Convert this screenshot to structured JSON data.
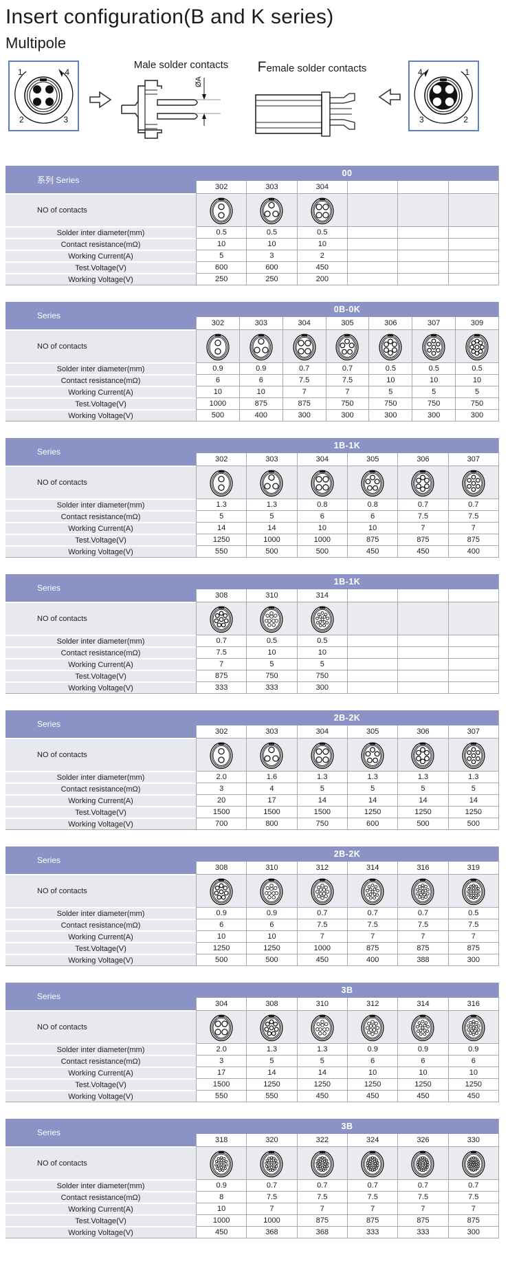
{
  "page": {
    "title": "Insert configuration(B and K series)",
    "subtitle": "Multipole",
    "male_contacts_label": "Male solder contacts",
    "female_contacts_label": "Female solder contacts",
    "dim_label": "ØA"
  },
  "face_diagrams": {
    "male": {
      "pins": [
        "1",
        "4",
        "2",
        "3"
      ],
      "style": "filled"
    },
    "female": {
      "pins": [
        "4",
        "1",
        "3",
        "2"
      ],
      "style": "open"
    }
  },
  "row_labels": {
    "series_cn": "系列 Series",
    "series": "Series",
    "contacts": "NO of contacts",
    "solder": "Solder inter diameter(mm)",
    "resistance": "Contact resistance(mΩ)",
    "current": "Working Current(A)",
    "test_voltage": "Test.Voltage(V)",
    "working_voltage": "Working Voltage(V)"
  },
  "colors": {
    "header_bg": "#8b93c6",
    "label_bg": "#e8e8ef",
    "contacts_row_bg": "#eaeaf0",
    "grid_line": "#a9a9b2",
    "diagram_box_border": "#5c7fc0"
  },
  "tables": [
    {
      "series_label": "系列 Series",
      "series_name": "00",
      "num_cols": 6,
      "columns": [
        {
          "code": "302",
          "contacts": 2,
          "solder_diameter": "0.5",
          "contact_resistance": "10",
          "working_current": "5",
          "test_voltage": "600",
          "working_voltage": "250"
        },
        {
          "code": "303",
          "contacts": 3,
          "solder_diameter": "0.5",
          "contact_resistance": "10",
          "working_current": "3",
          "test_voltage": "600",
          "working_voltage": "250"
        },
        {
          "code": "304",
          "contacts": 4,
          "solder_diameter": "0.5",
          "contact_resistance": "10",
          "working_current": "2",
          "test_voltage": "450",
          "working_voltage": "200"
        }
      ]
    },
    {
      "series_label": "Series",
      "series_name": "0B-0K",
      "num_cols": 7,
      "columns": [
        {
          "code": "302",
          "contacts": 2,
          "solder_diameter": "0.9",
          "contact_resistance": "6",
          "working_current": "10",
          "test_voltage": "1000",
          "working_voltage": "500"
        },
        {
          "code": "303",
          "contacts": 3,
          "solder_diameter": "0.9",
          "contact_resistance": "6",
          "working_current": "10",
          "test_voltage": "875",
          "working_voltage": "400"
        },
        {
          "code": "304",
          "contacts": 4,
          "solder_diameter": "0.7",
          "contact_resistance": "7.5",
          "working_current": "7",
          "test_voltage": "875",
          "working_voltage": "300"
        },
        {
          "code": "305",
          "contacts": 5,
          "solder_diameter": "0.7",
          "contact_resistance": "7.5",
          "working_current": "7",
          "test_voltage": "750",
          "working_voltage": "300"
        },
        {
          "code": "306",
          "contacts": 6,
          "solder_diameter": "0.5",
          "contact_resistance": "10",
          "working_current": "5",
          "test_voltage": "750",
          "working_voltage": "300"
        },
        {
          "code": "307",
          "contacts": 7,
          "solder_diameter": "0.5",
          "contact_resistance": "10",
          "working_current": "5",
          "test_voltage": "750",
          "working_voltage": "300"
        },
        {
          "code": "309",
          "contacts": 9,
          "solder_diameter": "0.5",
          "contact_resistance": "10",
          "working_current": "5",
          "test_voltage": "750",
          "working_voltage": "300"
        }
      ]
    },
    {
      "series_label": "Series",
      "series_name": "1B-1K",
      "num_cols": 6,
      "columns": [
        {
          "code": "302",
          "contacts": 2,
          "solder_diameter": "1.3",
          "contact_resistance": "5",
          "working_current": "14",
          "test_voltage": "1250",
          "working_voltage": "550"
        },
        {
          "code": "303",
          "contacts": 3,
          "solder_diameter": "1.3",
          "contact_resistance": "5",
          "working_current": "14",
          "test_voltage": "1000",
          "working_voltage": "500"
        },
        {
          "code": "304",
          "contacts": 4,
          "solder_diameter": "0.8",
          "contact_resistance": "6",
          "working_current": "10",
          "test_voltage": "1000",
          "working_voltage": "500"
        },
        {
          "code": "305",
          "contacts": 5,
          "solder_diameter": "0.8",
          "contact_resistance": "6",
          "working_current": "10",
          "test_voltage": "875",
          "working_voltage": "450"
        },
        {
          "code": "306",
          "contacts": 6,
          "solder_diameter": "0.7",
          "contact_resistance": "7.5",
          "working_current": "7",
          "test_voltage": "875",
          "working_voltage": "450"
        },
        {
          "code": "307",
          "contacts": 7,
          "solder_diameter": "0.7",
          "contact_resistance": "7.5",
          "working_current": "7",
          "test_voltage": "875",
          "working_voltage": "400"
        }
      ]
    },
    {
      "series_label": "Series",
      "series_name": "1B-1K",
      "num_cols": 6,
      "columns": [
        {
          "code": "308",
          "contacts": 8,
          "solder_diameter": "0.7",
          "contact_resistance": "7.5",
          "working_current": "7",
          "test_voltage": "875",
          "working_voltage": "333"
        },
        {
          "code": "310",
          "contacts": 10,
          "solder_diameter": "0.5",
          "contact_resistance": "10",
          "working_current": "5",
          "test_voltage": "750",
          "working_voltage": "333"
        },
        {
          "code": "314",
          "contacts": 14,
          "solder_diameter": "0.5",
          "contact_resistance": "10",
          "working_current": "5",
          "test_voltage": "750",
          "working_voltage": "300"
        }
      ]
    },
    {
      "series_label": "Series",
      "series_name": "2B-2K",
      "num_cols": 6,
      "columns": [
        {
          "code": "302",
          "contacts": 2,
          "solder_diameter": "2.0",
          "contact_resistance": "3",
          "working_current": "20",
          "test_voltage": "1500",
          "working_voltage": "700"
        },
        {
          "code": "303",
          "contacts": 3,
          "solder_diameter": "1.6",
          "contact_resistance": "4",
          "working_current": "17",
          "test_voltage": "1500",
          "working_voltage": "800"
        },
        {
          "code": "304",
          "contacts": 4,
          "solder_diameter": "1.3",
          "contact_resistance": "5",
          "working_current": "14",
          "test_voltage": "1500",
          "working_voltage": "750"
        },
        {
          "code": "305",
          "contacts": 5,
          "solder_diameter": "1.3",
          "contact_resistance": "5",
          "working_current": "14",
          "test_voltage": "1250",
          "working_voltage": "600"
        },
        {
          "code": "306",
          "contacts": 6,
          "solder_diameter": "1.3",
          "contact_resistance": "5",
          "working_current": "14",
          "test_voltage": "1250",
          "working_voltage": "500"
        },
        {
          "code": "307",
          "contacts": 7,
          "solder_diameter": "1.3",
          "contact_resistance": "5",
          "working_current": "14",
          "test_voltage": "1250",
          "working_voltage": "500"
        }
      ]
    },
    {
      "series_label": "Series",
      "series_name": "2B-2K",
      "num_cols": 6,
      "columns": [
        {
          "code": "308",
          "contacts": 8,
          "solder_diameter": "0.9",
          "contact_resistance": "6",
          "working_current": "10",
          "test_voltage": "1250",
          "working_voltage": "500"
        },
        {
          "code": "310",
          "contacts": 10,
          "solder_diameter": "0.9",
          "contact_resistance": "6",
          "working_current": "10",
          "test_voltage": "1250",
          "working_voltage": "500"
        },
        {
          "code": "312",
          "contacts": 12,
          "solder_diameter": "0.7",
          "contact_resistance": "7.5",
          "working_current": "7",
          "test_voltage": "1000",
          "working_voltage": "450"
        },
        {
          "code": "314",
          "contacts": 14,
          "solder_diameter": "0.7",
          "contact_resistance": "7.5",
          "working_current": "7",
          "test_voltage": "875",
          "working_voltage": "400"
        },
        {
          "code": "316",
          "contacts": 16,
          "solder_diameter": "0.7",
          "contact_resistance": "7.5",
          "working_current": "7",
          "test_voltage": "875",
          "working_voltage": "388"
        },
        {
          "code": "319",
          "contacts": 19,
          "solder_diameter": "0.5",
          "contact_resistance": "7.5",
          "working_current": "7",
          "test_voltage": "875",
          "working_voltage": "300"
        }
      ]
    },
    {
      "series_label": "Series",
      "series_name": "3B",
      "num_cols": 6,
      "columns": [
        {
          "code": "304",
          "contacts": 4,
          "solder_diameter": "2.0",
          "contact_resistance": "3",
          "working_current": "17",
          "test_voltage": "1500",
          "working_voltage": "550"
        },
        {
          "code": "308",
          "contacts": 8,
          "solder_diameter": "1.3",
          "contact_resistance": "5",
          "working_current": "14",
          "test_voltage": "1250",
          "working_voltage": "550"
        },
        {
          "code": "310",
          "contacts": 10,
          "solder_diameter": "1.3",
          "contact_resistance": "5",
          "working_current": "14",
          "test_voltage": "1250",
          "working_voltage": "450"
        },
        {
          "code": "312",
          "contacts": 12,
          "solder_diameter": "0.9",
          "contact_resistance": "6",
          "working_current": "10",
          "test_voltage": "1250",
          "working_voltage": "450"
        },
        {
          "code": "314",
          "contacts": 14,
          "solder_diameter": "0.9",
          "contact_resistance": "6",
          "working_current": "10",
          "test_voltage": "1250",
          "working_voltage": "450"
        },
        {
          "code": "316",
          "contacts": 16,
          "solder_diameter": "0.9",
          "contact_resistance": "6",
          "working_current": "10",
          "test_voltage": "1250",
          "working_voltage": "450"
        }
      ]
    },
    {
      "series_label": "Series",
      "series_name": "3B",
      "num_cols": 6,
      "columns": [
        {
          "code": "318",
          "contacts": 18,
          "solder_diameter": "0.9",
          "contact_resistance": "8",
          "working_current": "10",
          "test_voltage": "1000",
          "working_voltage": "450"
        },
        {
          "code": "320",
          "contacts": 20,
          "solder_diameter": "0.7",
          "contact_resistance": "7.5",
          "working_current": "7",
          "test_voltage": "1000",
          "working_voltage": "368"
        },
        {
          "code": "322",
          "contacts": 22,
          "solder_diameter": "0.7",
          "contact_resistance": "7.5",
          "working_current": "7",
          "test_voltage": "875",
          "working_voltage": "368"
        },
        {
          "code": "324",
          "contacts": 24,
          "solder_diameter": "0.7",
          "contact_resistance": "7.5",
          "working_current": "7",
          "test_voltage": "875",
          "working_voltage": "333"
        },
        {
          "code": "326",
          "contacts": 26,
          "solder_diameter": "0.7",
          "contact_resistance": "7.5",
          "working_current": "7",
          "test_voltage": "875",
          "working_voltage": "333"
        },
        {
          "code": "330",
          "contacts": 30,
          "solder_diameter": "0.7",
          "contact_resistance": "7.5",
          "working_current": "7",
          "test_voltage": "875",
          "working_voltage": "300"
        }
      ]
    }
  ]
}
